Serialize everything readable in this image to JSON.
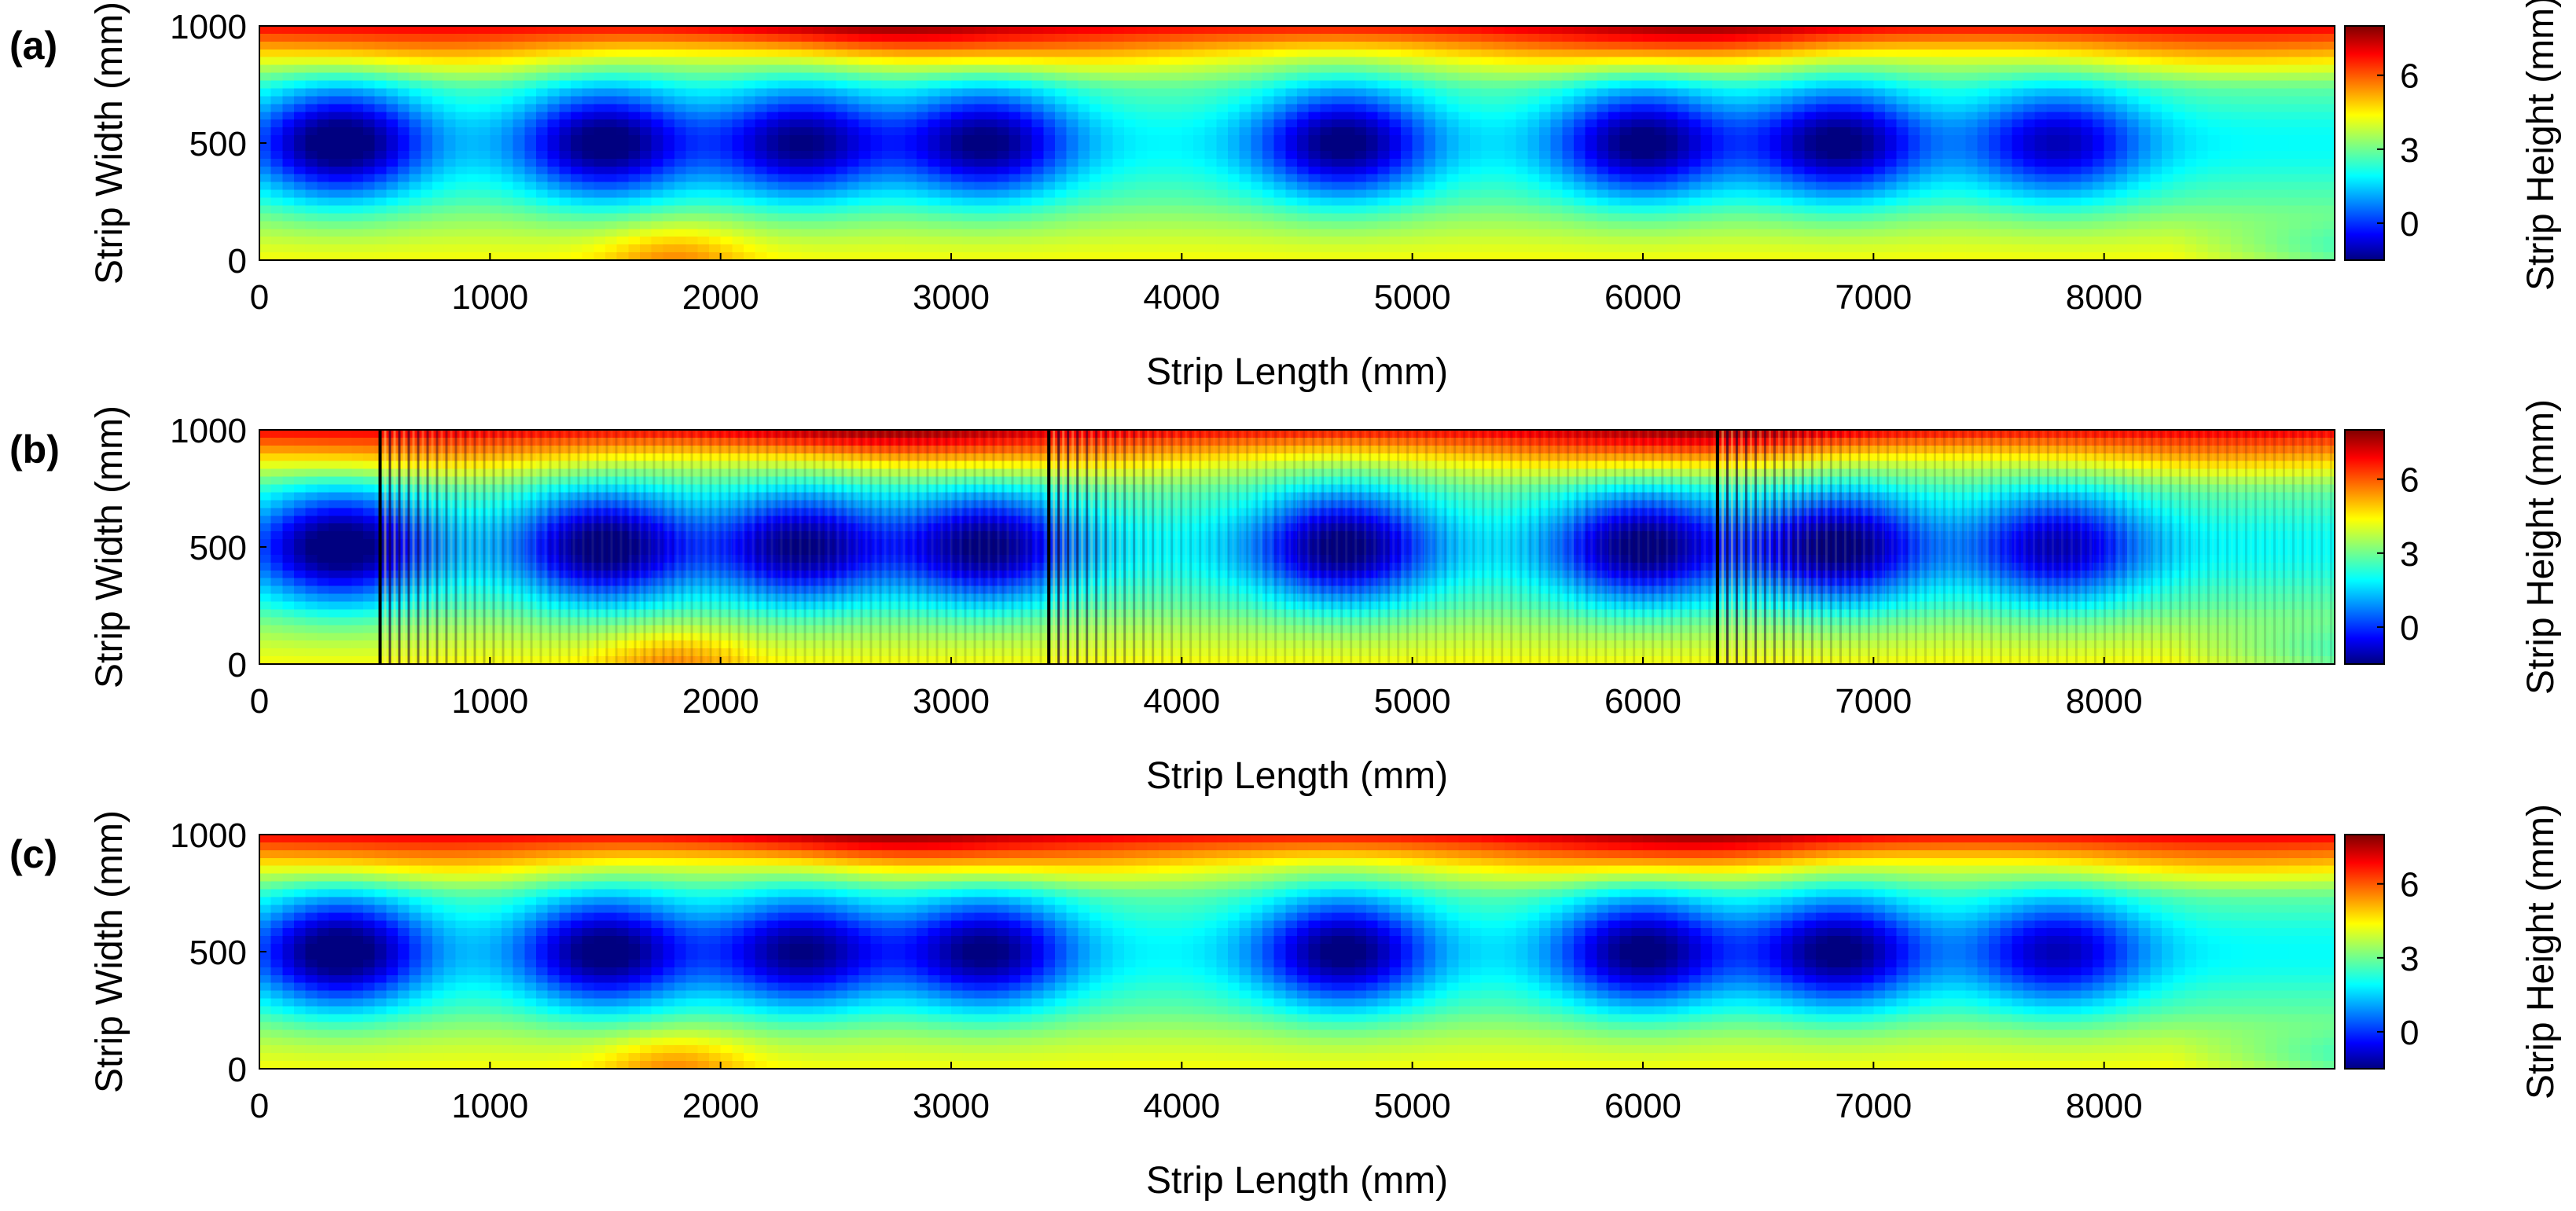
{
  "chart_data": [
    {
      "panel_label": "(a)",
      "type": "heatmap",
      "title": "",
      "xlabel": "Strip Length (mm)",
      "ylabel": "Strip Width (mm)",
      "colorbar_label": "Strip Height (mm)",
      "xlim": [
        0,
        9000
      ],
      "ylim": [
        0,
        1000
      ],
      "xticks": [
        0,
        1000,
        2000,
        3000,
        4000,
        5000,
        6000,
        7000,
        8000
      ],
      "yticks": [
        0,
        500,
        1000
      ],
      "colorbar_range": [
        -1.5,
        8
      ],
      "colorbar_ticks": [
        0,
        3,
        6
      ],
      "colormap": "jet",
      "low_spots": [
        {
          "x": 350,
          "y": 500,
          "z": -0.8
        },
        {
          "x": 1500,
          "y": 500,
          "z": -0.6
        },
        {
          "x": 2350,
          "y": 500,
          "z": -0.3
        },
        {
          "x": 3150,
          "y": 500,
          "z": -0.4
        },
        {
          "x": 4700,
          "y": 500,
          "z": -0.5
        },
        {
          "x": 6000,
          "y": 500,
          "z": -0.5
        },
        {
          "x": 6850,
          "y": 500,
          "z": -0.5
        },
        {
          "x": 7800,
          "y": 500,
          "z": 0.2
        }
      ],
      "high_edge_peaks": [
        {
          "x": 2700,
          "y": 1000,
          "z": 7.9
        },
        {
          "x": 6250,
          "y": 1000,
          "z": 7.8
        }
      ],
      "low_edge_hotspots": [
        {
          "x": 1800,
          "y": 0,
          "z": 5.6
        }
      ],
      "stripe_regions": []
    },
    {
      "panel_label": "(b)",
      "type": "heatmap",
      "title": "",
      "xlabel": "Strip Length (mm)",
      "ylabel": "Strip Width (mm)",
      "colorbar_label": "Strip Height (mm)",
      "xlim": [
        0,
        9000
      ],
      "ylim": [
        0,
        1000
      ],
      "xticks": [
        0,
        1000,
        2000,
        3000,
        4000,
        5000,
        6000,
        7000,
        8000
      ],
      "yticks": [
        0,
        500,
        1000
      ],
      "colorbar_range": [
        -1.5,
        8
      ],
      "colorbar_ticks": [
        0,
        3,
        6
      ],
      "colormap": "jet",
      "low_spots": [
        {
          "x": 350,
          "y": 500,
          "z": -0.8
        },
        {
          "x": 1500,
          "y": 500,
          "z": -0.6
        },
        {
          "x": 2350,
          "y": 500,
          "z": -0.3
        },
        {
          "x": 3150,
          "y": 500,
          "z": -0.4
        },
        {
          "x": 4700,
          "y": 500,
          "z": -0.5
        },
        {
          "x": 6000,
          "y": 500,
          "z": -0.5
        },
        {
          "x": 6850,
          "y": 500,
          "z": -0.5
        },
        {
          "x": 7800,
          "y": 500,
          "z": 0.2
        }
      ],
      "high_edge_peaks": [
        {
          "x": 2700,
          "y": 1000,
          "z": 7.9
        },
        {
          "x": 6250,
          "y": 1000,
          "z": 7.8
        }
      ],
      "low_edge_hotspots": [
        {
          "x": 1800,
          "y": 0,
          "z": 5.6
        }
      ],
      "stripe_regions": [
        {
          "start": 520,
          "end": 3420
        },
        {
          "start": 3420,
          "end": 6320
        },
        {
          "start": 6320,
          "end": 9000
        }
      ]
    },
    {
      "panel_label": "(c)",
      "type": "heatmap",
      "title": "",
      "xlabel": "Strip Length (mm)",
      "ylabel": "Strip Width (mm)",
      "colorbar_label": "Strip Height (mm)",
      "xlim": [
        0,
        9000
      ],
      "ylim": [
        0,
        1000
      ],
      "xticks": [
        0,
        1000,
        2000,
        3000,
        4000,
        5000,
        6000,
        7000,
        8000
      ],
      "yticks": [
        0,
        500,
        1000
      ],
      "colorbar_range": [
        -1.5,
        8
      ],
      "colorbar_ticks": [
        0,
        3,
        6
      ],
      "colormap": "jet",
      "low_spots": [
        {
          "x": 350,
          "y": 500,
          "z": -0.8
        },
        {
          "x": 1500,
          "y": 500,
          "z": -0.6
        },
        {
          "x": 2350,
          "y": 500,
          "z": -0.3
        },
        {
          "x": 3150,
          "y": 500,
          "z": -0.4
        },
        {
          "x": 4700,
          "y": 500,
          "z": -0.5
        },
        {
          "x": 6000,
          "y": 500,
          "z": -0.5
        },
        {
          "x": 6850,
          "y": 500,
          "z": -0.5
        },
        {
          "x": 7800,
          "y": 500,
          "z": 0.2
        }
      ],
      "high_edge_peaks": [
        {
          "x": 2700,
          "y": 1000,
          "z": 7.9
        },
        {
          "x": 6250,
          "y": 1000,
          "z": 7.8
        }
      ],
      "low_edge_hotspots": [
        {
          "x": 1800,
          "y": 0,
          "z": 5.6
        }
      ],
      "stripe_regions": []
    }
  ]
}
